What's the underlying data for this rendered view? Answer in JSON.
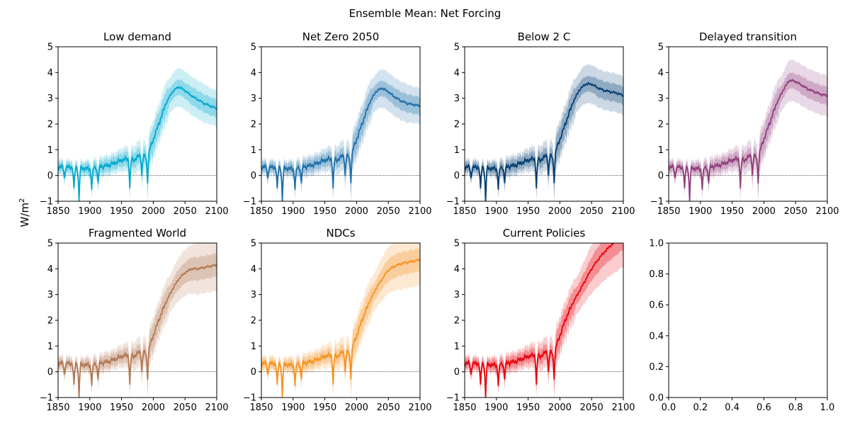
{
  "figure": {
    "suptitle": "Ensemble Mean: Net Forcing",
    "ylabel_base": "W/m",
    "ylabel_sup": "2"
  },
  "chart_data": [
    {
      "type": "line",
      "title": "Low demand",
      "color": "#00a9cf",
      "xlim": [
        1850,
        2100
      ],
      "ylim": [
        -1,
        5
      ],
      "xticks": [
        "1850",
        "1900",
        "1950",
        "2000",
        "2050",
        "2100"
      ],
      "yticks": [
        "−1",
        "0",
        "1",
        "2",
        "3",
        "4",
        "5"
      ],
      "x": [
        1850,
        1860,
        1870,
        1880,
        1890,
        1900,
        1910,
        1920,
        1930,
        1940,
        1950,
        1960,
        1970,
        1980,
        1990,
        2000,
        2010,
        2020,
        2030,
        2040,
        2050,
        2060,
        2070,
        2080,
        2090,
        2100
      ],
      "y": [
        0.35,
        0.3,
        0.32,
        0.3,
        0.28,
        0.25,
        0.3,
        0.35,
        0.4,
        0.5,
        0.6,
        0.65,
        0.6,
        0.8,
        0.7,
        1.4,
        2.1,
        2.8,
        3.25,
        3.45,
        3.3,
        3.1,
        2.95,
        2.8,
        2.7,
        2.6
      ],
      "band_inner": [
        0.2,
        0.2,
        0.2,
        0.2,
        0.2,
        0.25,
        0.25,
        0.25,
        0.25,
        0.25,
        0.25,
        0.3,
        0.3,
        0.3,
        0.3,
        0.35,
        0.3,
        0.3,
        0.3,
        0.3,
        0.3,
        0.35,
        0.35,
        0.35,
        0.35,
        0.35
      ],
      "band_outer": [
        0.3,
        0.3,
        0.3,
        0.3,
        0.3,
        0.35,
        0.4,
        0.4,
        0.4,
        0.4,
        0.45,
        0.5,
        0.55,
        0.6,
        0.6,
        0.6,
        0.6,
        0.65,
        0.7,
        0.75,
        0.75,
        0.75,
        0.75,
        0.75,
        0.7,
        0.7
      ],
      "dips": [
        [
          1860,
          -0.1
        ],
        [
          1875,
          -0.5
        ],
        [
          1883,
          -1.0
        ],
        [
          1903,
          -0.55
        ],
        [
          1913,
          -0.3
        ],
        [
          1963,
          -0.5
        ],
        [
          1982,
          0.0
        ],
        [
          1991,
          -0.3
        ]
      ]
    },
    {
      "type": "line",
      "title": "Net Zero 2050",
      "color": "#1f6faa",
      "xlim": [
        1850,
        2100
      ],
      "ylim": [
        -1,
        5
      ],
      "xticks": [
        "1850",
        "1900",
        "1950",
        "2000",
        "2050",
        "2100"
      ],
      "yticks": [
        "−1",
        "0",
        "1",
        "2",
        "3",
        "4",
        "5"
      ],
      "x": [
        1850,
        1860,
        1870,
        1880,
        1890,
        1900,
        1910,
        1920,
        1930,
        1940,
        1950,
        1960,
        1970,
        1980,
        1990,
        2000,
        2010,
        2020,
        2030,
        2040,
        2050,
        2060,
        2070,
        2080,
        2090,
        2100
      ],
      "y": [
        0.35,
        0.3,
        0.32,
        0.3,
        0.28,
        0.25,
        0.3,
        0.35,
        0.4,
        0.5,
        0.6,
        0.65,
        0.6,
        0.8,
        0.7,
        1.4,
        2.1,
        2.8,
        3.25,
        3.4,
        3.25,
        3.05,
        2.9,
        2.8,
        2.75,
        2.7
      ],
      "band_inner": [
        0.2,
        0.2,
        0.2,
        0.2,
        0.2,
        0.25,
        0.25,
        0.25,
        0.25,
        0.25,
        0.25,
        0.3,
        0.3,
        0.3,
        0.3,
        0.35,
        0.3,
        0.3,
        0.3,
        0.3,
        0.3,
        0.35,
        0.35,
        0.35,
        0.35,
        0.35
      ],
      "band_outer": [
        0.3,
        0.3,
        0.3,
        0.3,
        0.3,
        0.35,
        0.4,
        0.4,
        0.4,
        0.4,
        0.45,
        0.5,
        0.55,
        0.6,
        0.6,
        0.6,
        0.6,
        0.65,
        0.7,
        0.75,
        0.75,
        0.75,
        0.75,
        0.75,
        0.7,
        0.7
      ],
      "dips": [
        [
          1860,
          -0.1
        ],
        [
          1875,
          -0.5
        ],
        [
          1883,
          -1.0
        ],
        [
          1903,
          -0.55
        ],
        [
          1913,
          -0.3
        ],
        [
          1963,
          -0.5
        ],
        [
          1982,
          0.0
        ],
        [
          1991,
          -0.3
        ]
      ]
    },
    {
      "type": "line",
      "title": "Below 2 C",
      "color": "#023e73",
      "xlim": [
        1850,
        2100
      ],
      "ylim": [
        -1,
        5
      ],
      "xticks": [
        "1850",
        "1900",
        "1950",
        "2000",
        "2050",
        "2100"
      ],
      "yticks": [
        "−1",
        "0",
        "1",
        "2",
        "3",
        "4",
        "5"
      ],
      "x": [
        1850,
        1860,
        1870,
        1880,
        1890,
        1900,
        1910,
        1920,
        1930,
        1940,
        1950,
        1960,
        1970,
        1980,
        1990,
        2000,
        2010,
        2020,
        2030,
        2040,
        2050,
        2060,
        2070,
        2080,
        2090,
        2100
      ],
      "y": [
        0.35,
        0.3,
        0.32,
        0.3,
        0.28,
        0.25,
        0.3,
        0.35,
        0.4,
        0.5,
        0.6,
        0.65,
        0.6,
        0.8,
        0.7,
        1.4,
        2.1,
        2.8,
        3.3,
        3.55,
        3.55,
        3.4,
        3.3,
        3.25,
        3.2,
        3.1
      ],
      "band_inner": [
        0.2,
        0.2,
        0.2,
        0.2,
        0.2,
        0.25,
        0.25,
        0.25,
        0.25,
        0.25,
        0.25,
        0.3,
        0.3,
        0.3,
        0.3,
        0.35,
        0.3,
        0.3,
        0.3,
        0.3,
        0.3,
        0.35,
        0.35,
        0.35,
        0.35,
        0.35
      ],
      "band_outer": [
        0.3,
        0.3,
        0.3,
        0.3,
        0.3,
        0.35,
        0.4,
        0.4,
        0.4,
        0.4,
        0.45,
        0.5,
        0.55,
        0.6,
        0.6,
        0.6,
        0.6,
        0.65,
        0.7,
        0.75,
        0.75,
        0.75,
        0.75,
        0.75,
        0.75,
        0.75
      ],
      "dips": [
        [
          1860,
          -0.1
        ],
        [
          1875,
          -0.5
        ],
        [
          1883,
          -1.0
        ],
        [
          1903,
          -0.55
        ],
        [
          1913,
          -0.3
        ],
        [
          1963,
          -0.5
        ],
        [
          1982,
          0.0
        ],
        [
          1991,
          -0.3
        ]
      ]
    },
    {
      "type": "line",
      "title": "Delayed transition",
      "color": "#923e7e",
      "xlim": [
        1850,
        2100
      ],
      "ylim": [
        -1,
        5
      ],
      "xticks": [
        "1850",
        "1900",
        "1950",
        "2000",
        "2050",
        "2100"
      ],
      "yticks": [
        "−1",
        "0",
        "1",
        "2",
        "3",
        "4",
        "5"
      ],
      "x": [
        1850,
        1860,
        1870,
        1880,
        1890,
        1900,
        1910,
        1920,
        1930,
        1940,
        1950,
        1960,
        1970,
        1980,
        1990,
        2000,
        2010,
        2020,
        2030,
        2040,
        2050,
        2060,
        2070,
        2080,
        2090,
        2100
      ],
      "y": [
        0.35,
        0.3,
        0.32,
        0.3,
        0.28,
        0.25,
        0.3,
        0.35,
        0.4,
        0.5,
        0.6,
        0.65,
        0.6,
        0.8,
        0.7,
        1.4,
        2.1,
        2.8,
        3.3,
        3.7,
        3.65,
        3.5,
        3.35,
        3.25,
        3.15,
        3.1
      ],
      "band_inner": [
        0.2,
        0.2,
        0.2,
        0.2,
        0.2,
        0.25,
        0.25,
        0.25,
        0.25,
        0.25,
        0.25,
        0.3,
        0.3,
        0.3,
        0.3,
        0.35,
        0.3,
        0.3,
        0.3,
        0.3,
        0.3,
        0.35,
        0.35,
        0.35,
        0.35,
        0.35
      ],
      "band_outer": [
        0.3,
        0.3,
        0.3,
        0.3,
        0.3,
        0.35,
        0.4,
        0.4,
        0.4,
        0.4,
        0.45,
        0.5,
        0.55,
        0.6,
        0.6,
        0.6,
        0.6,
        0.65,
        0.7,
        0.8,
        0.8,
        0.8,
        0.8,
        0.8,
        0.8,
        0.8
      ],
      "dips": [
        [
          1860,
          -0.1
        ],
        [
          1875,
          -0.5
        ],
        [
          1883,
          -1.0
        ],
        [
          1903,
          -0.55
        ],
        [
          1913,
          -0.3
        ],
        [
          1963,
          -0.5
        ],
        [
          1982,
          0.0
        ],
        [
          1991,
          -0.3
        ]
      ]
    },
    {
      "type": "line",
      "title": "Fragmented World",
      "color": "#b27853",
      "xlim": [
        1850,
        2100
      ],
      "ylim": [
        -1,
        5
      ],
      "xticks": [
        "1850",
        "1900",
        "1950",
        "2000",
        "2050",
        "2100"
      ],
      "yticks": [
        "−1",
        "0",
        "1",
        "2",
        "3",
        "4",
        "5"
      ],
      "x": [
        1850,
        1860,
        1870,
        1880,
        1890,
        1900,
        1910,
        1920,
        1930,
        1940,
        1950,
        1960,
        1970,
        1980,
        1990,
        2000,
        2010,
        2020,
        2030,
        2040,
        2050,
        2060,
        2070,
        2080,
        2090,
        2100
      ],
      "y": [
        0.35,
        0.3,
        0.32,
        0.3,
        0.28,
        0.25,
        0.3,
        0.35,
        0.4,
        0.5,
        0.6,
        0.65,
        0.6,
        0.8,
        0.7,
        1.4,
        2.1,
        2.7,
        3.2,
        3.6,
        3.85,
        4.0,
        4.0,
        4.05,
        4.1,
        4.15
      ],
      "band_inner": [
        0.2,
        0.2,
        0.2,
        0.2,
        0.2,
        0.25,
        0.25,
        0.25,
        0.25,
        0.25,
        0.25,
        0.3,
        0.3,
        0.3,
        0.3,
        0.35,
        0.3,
        0.3,
        0.35,
        0.4,
        0.4,
        0.45,
        0.45,
        0.45,
        0.45,
        0.45
      ],
      "band_outer": [
        0.3,
        0.3,
        0.3,
        0.3,
        0.3,
        0.35,
        0.4,
        0.4,
        0.4,
        0.4,
        0.45,
        0.5,
        0.55,
        0.6,
        0.6,
        0.6,
        0.6,
        0.65,
        0.75,
        0.85,
        0.9,
        0.95,
        1.0,
        1.0,
        1.0,
        1.0
      ],
      "dips": [
        [
          1860,
          -0.1
        ],
        [
          1875,
          -0.5
        ],
        [
          1883,
          -1.0
        ],
        [
          1903,
          -0.55
        ],
        [
          1913,
          -0.3
        ],
        [
          1963,
          -0.5
        ],
        [
          1982,
          0.0
        ],
        [
          1991,
          -0.3
        ]
      ]
    },
    {
      "type": "line",
      "title": "NDCs",
      "color": "#f69320",
      "xlim": [
        1850,
        2100
      ],
      "ylim": [
        -1,
        5
      ],
      "xticks": [
        "1850",
        "1900",
        "1950",
        "2000",
        "2050",
        "2100"
      ],
      "yticks": [
        "−1",
        "0",
        "1",
        "2",
        "3",
        "4",
        "5"
      ],
      "x": [
        1850,
        1860,
        1870,
        1880,
        1890,
        1900,
        1910,
        1920,
        1930,
        1940,
        1950,
        1960,
        1970,
        1980,
        1990,
        2000,
        2010,
        2020,
        2030,
        2040,
        2050,
        2060,
        2070,
        2080,
        2090,
        2100
      ],
      "y": [
        0.35,
        0.3,
        0.32,
        0.3,
        0.28,
        0.25,
        0.3,
        0.35,
        0.4,
        0.5,
        0.6,
        0.65,
        0.6,
        0.8,
        0.7,
        1.4,
        2.1,
        2.7,
        3.2,
        3.6,
        3.95,
        4.1,
        4.2,
        4.25,
        4.3,
        4.35
      ],
      "band_inner": [
        0.2,
        0.2,
        0.2,
        0.2,
        0.2,
        0.25,
        0.25,
        0.25,
        0.25,
        0.25,
        0.25,
        0.3,
        0.3,
        0.3,
        0.3,
        0.35,
        0.3,
        0.3,
        0.35,
        0.4,
        0.45,
        0.45,
        0.45,
        0.45,
        0.45,
        0.45
      ],
      "band_outer": [
        0.3,
        0.3,
        0.3,
        0.3,
        0.3,
        0.35,
        0.4,
        0.4,
        0.4,
        0.4,
        0.45,
        0.5,
        0.55,
        0.6,
        0.6,
        0.6,
        0.6,
        0.65,
        0.75,
        0.85,
        0.9,
        0.95,
        1.0,
        1.0,
        1.0,
        1.0
      ],
      "dips": [
        [
          1860,
          -0.1
        ],
        [
          1875,
          -0.5
        ],
        [
          1883,
          -1.0
        ],
        [
          1903,
          -0.55
        ],
        [
          1913,
          -0.3
        ],
        [
          1963,
          -0.5
        ],
        [
          1982,
          0.0
        ],
        [
          1991,
          -0.3
        ]
      ]
    },
    {
      "type": "line",
      "title": "Current Policies",
      "color": "#e8000b",
      "xlim": [
        1850,
        2100
      ],
      "ylim": [
        -1,
        5
      ],
      "xticks": [
        "1850",
        "1900",
        "1950",
        "2000",
        "2050",
        "2100"
      ],
      "yticks": [
        "−1",
        "0",
        "1",
        "2",
        "3",
        "4",
        "5"
      ],
      "x": [
        1850,
        1860,
        1870,
        1880,
        1890,
        1900,
        1910,
        1920,
        1930,
        1940,
        1950,
        1960,
        1970,
        1980,
        1990,
        2000,
        2010,
        2020,
        2030,
        2040,
        2050,
        2060,
        2070,
        2080,
        2090,
        2100
      ],
      "y": [
        0.35,
        0.3,
        0.32,
        0.3,
        0.28,
        0.25,
        0.3,
        0.35,
        0.4,
        0.5,
        0.6,
        0.65,
        0.6,
        0.8,
        0.7,
        1.4,
        2.1,
        2.65,
        3.1,
        3.55,
        4.0,
        4.35,
        4.65,
        4.9,
        5.1,
        5.3
      ],
      "band_inner": [
        0.2,
        0.2,
        0.2,
        0.2,
        0.2,
        0.25,
        0.25,
        0.25,
        0.25,
        0.25,
        0.25,
        0.3,
        0.3,
        0.3,
        0.3,
        0.35,
        0.3,
        0.3,
        0.35,
        0.4,
        0.45,
        0.5,
        0.5,
        0.55,
        0.55,
        0.55
      ],
      "band_outer": [
        0.3,
        0.3,
        0.3,
        0.3,
        0.3,
        0.35,
        0.4,
        0.4,
        0.4,
        0.4,
        0.45,
        0.5,
        0.55,
        0.6,
        0.6,
        0.6,
        0.6,
        0.65,
        0.75,
        0.85,
        0.95,
        1.05,
        1.1,
        1.15,
        1.2,
        1.2
      ],
      "dips": [
        [
          1860,
          -0.1
        ],
        [
          1875,
          -0.5
        ],
        [
          1883,
          -1.0
        ],
        [
          1903,
          -0.55
        ],
        [
          1913,
          -0.3
        ],
        [
          1963,
          -0.5
        ],
        [
          1982,
          0.0
        ],
        [
          1991,
          -0.3
        ]
      ]
    },
    {
      "type": "empty",
      "title": "",
      "xlim": [
        0,
        1
      ],
      "ylim": [
        0,
        1
      ],
      "xticks": [
        "0.0",
        "0.2",
        "0.4",
        "0.6",
        "0.8",
        "1.0"
      ],
      "yticks": [
        "0.0",
        "0.2",
        "0.4",
        "0.6",
        "0.8",
        "1.0"
      ]
    }
  ]
}
